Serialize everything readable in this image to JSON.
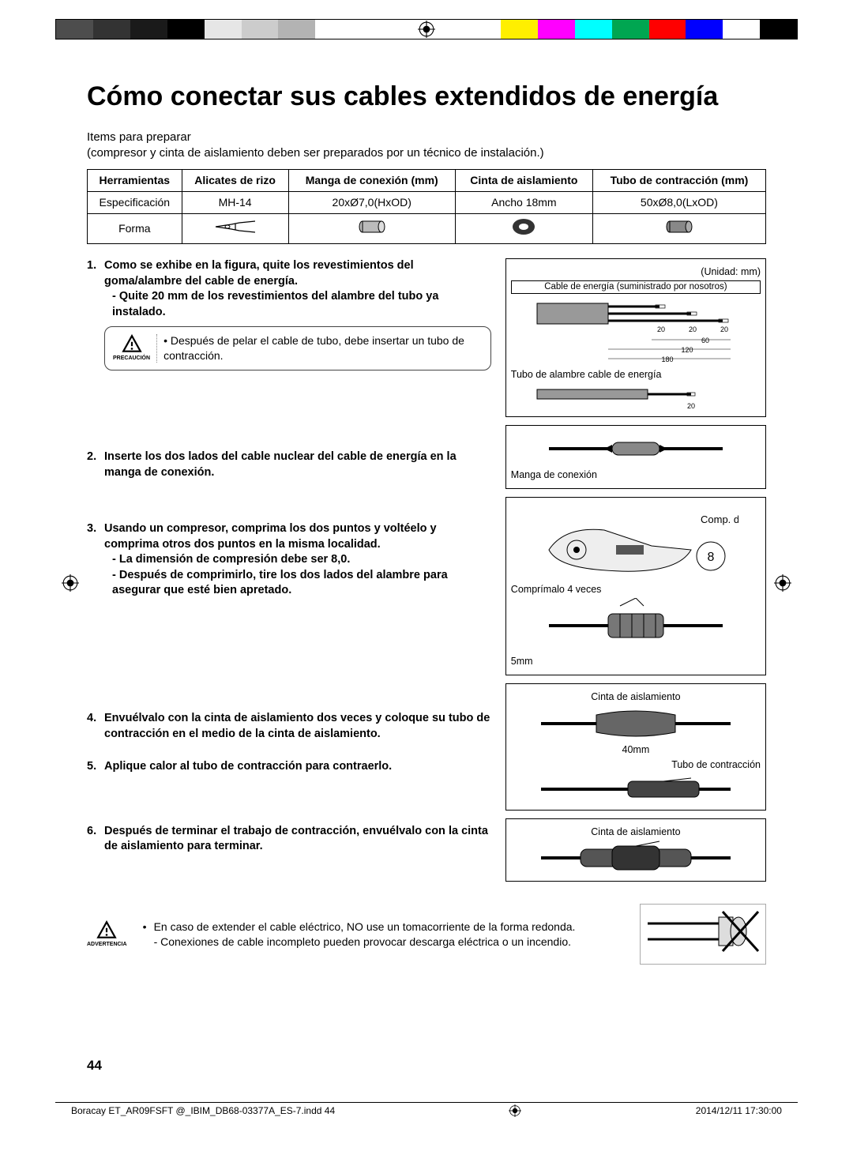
{
  "colorbar": [
    "#4d4d4d",
    "#333333",
    "#1a1a1a",
    "#000000",
    "#e6e6e6",
    "#cccccc",
    "#b3b3b3",
    "#ffffff",
    "#ffffff",
    "#ffffff",
    "#ffffff",
    "#ffffff",
    "#ffef00",
    "#ff00ff",
    "#00ffff",
    "#00a651",
    "#ff0000",
    "#0000ff",
    "#ffffff",
    "#000000"
  ],
  "title": "Cómo conectar sus cables extendidos de energía",
  "prep_heading": "Items para preparar",
  "prep_note": "(compresor y cinta de aislamiento deben ser preparados por un técnico de instalación.)",
  "tools_table": {
    "headers": [
      "Herramientas",
      "Alicates de rizo",
      "Manga de conexión (mm)",
      "Cinta de aislamiento",
      "Tubo de contracción (mm)"
    ],
    "spec_row_label": "Especificación",
    "spec_row": [
      "MH-14",
      "20xØ7,0(HxOD)",
      "Ancho 18mm",
      "50xØ8,0(LxOD)"
    ],
    "shape_row_label": "Forma"
  },
  "steps": {
    "s1_bold": "Como se exhibe en la figura, quite los revestimientos del goma/alambre del cable de energía.",
    "s1_sub": "- Quite 20 mm de los revestimientos del alambre del tubo ya instalado.",
    "caution_label": "PRECAUCIÓN",
    "caution_text": "Después de pelar el cable de tubo, debe insertar un tubo de contracción.",
    "s2_bold": "Inserte los dos lados del cable nuclear del cable de energía en la manga de conexión.",
    "s3_bold": "Usando un compresor, comprima los dos puntos y voltéelo y comprima otros dos puntos en la misma localidad.",
    "s3_sub1": "- La dimensión de compresión debe ser 8,0.",
    "s3_sub2": "- Después de comprimirlo, tire los dos lados del alambre para asegurar que esté bien apretado.",
    "s4_bold": "Envuélvalo con la cinta de aislamiento dos veces y coloque su tubo de contracción en el medio de la cinta de aislamiento.",
    "s5_bold": "Aplique calor al tubo de contracción para contraerlo.",
    "s6_bold": "Después de terminar el trabajo de contracción, envuélvalo con la cinta de aislamiento para terminar."
  },
  "fig1": {
    "unit": "(Unidad: mm)",
    "cable_label": "Cable de energía (suministrado por nosotros)",
    "dims": {
      "d20": "20",
      "d60": "60",
      "d120": "120",
      "d180": "180"
    },
    "tube_wire_label": "Tubo de alambre  cable de energía"
  },
  "fig2": {
    "label": "Manga de conexión"
  },
  "fig3": {
    "comp_dim": "Comp. dim.",
    "value": "8",
    "compress": "Comprímalo 4 veces",
    "gap": "5mm"
  },
  "fig4": {
    "tape": "Cinta de aislamiento",
    "len": "40mm",
    "shrink": "Tubo de contracción"
  },
  "fig5": {
    "tape": "Cinta de aislamiento"
  },
  "warning": {
    "label": "ADVERTENCIA",
    "line1": "En caso de extender el cable eléctrico, NO use un tomacorriente de la forma redonda.",
    "line2": "- Conexiones de cable incompleto pueden provocar descarga eléctrica o un incendio."
  },
  "page_num": "44",
  "footer": {
    "file": "Boracay ET_AR09FSFT @_IBIM_DB68-03377A_ES-7.indd   44",
    "timestamp": "2014/12/11   17:30:00"
  }
}
